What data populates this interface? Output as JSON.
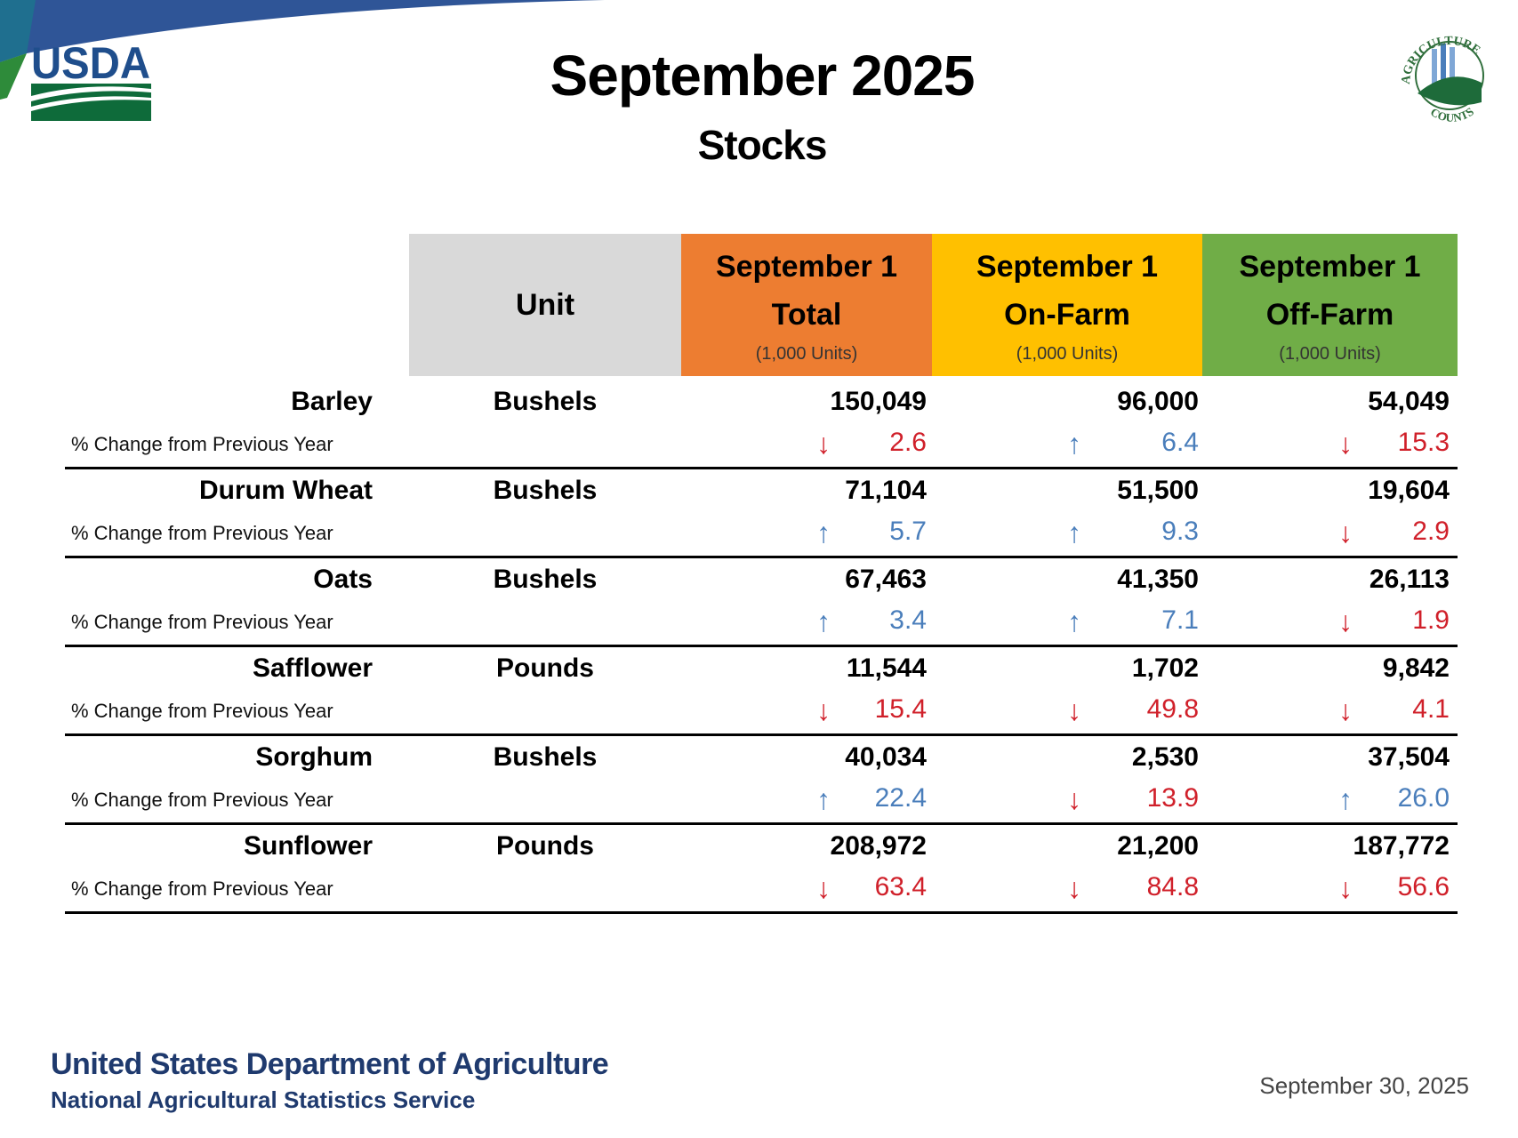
{
  "header": {
    "title": "September 2025",
    "subtitle": "Stocks"
  },
  "logos": {
    "left": "USDA",
    "right": "AGRICULTURE COUNTS"
  },
  "colors": {
    "total": "#ed7d31",
    "on_farm": "#ffc000",
    "off_farm": "#70ad47",
    "unit": "#d9d9d9",
    "up": "#4a7ebb",
    "down": "#d0202a",
    "footer": "#1f3a6e"
  },
  "columns": {
    "unit": "Unit",
    "total": {
      "line1": "September 1",
      "line2": "Total",
      "units": "(1,000 Units)"
    },
    "on_farm": {
      "line1": "September 1",
      "line2": "On-Farm",
      "units": "(1,000 Units)"
    },
    "off_farm": {
      "line1": "September 1",
      "line2": "Off-Farm",
      "units": "(1,000 Units)"
    }
  },
  "pct_label": "% Change from Previous Year",
  "rows": [
    {
      "name": "Barley",
      "unit": "Bushels",
      "total": "150,049",
      "on_farm": "96,000",
      "off_farm": "54,049",
      "pct": [
        {
          "dir": "down",
          "value": "2.6"
        },
        {
          "dir": "up",
          "value": "6.4"
        },
        {
          "dir": "down",
          "value": "15.3"
        }
      ]
    },
    {
      "name": "Durum Wheat",
      "unit": "Bushels",
      "total": "71,104",
      "on_farm": "51,500",
      "off_farm": "19,604",
      "pct": [
        {
          "dir": "up",
          "value": "5.7"
        },
        {
          "dir": "up",
          "value": "9.3"
        },
        {
          "dir": "down",
          "value": "2.9"
        }
      ]
    },
    {
      "name": "Oats",
      "unit": "Bushels",
      "total": "67,463",
      "on_farm": "41,350",
      "off_farm": "26,113",
      "pct": [
        {
          "dir": "up",
          "value": "3.4"
        },
        {
          "dir": "up",
          "value": "7.1"
        },
        {
          "dir": "down",
          "value": "1.9"
        }
      ]
    },
    {
      "name": "Safflower",
      "unit": "Pounds",
      "total": "11,544",
      "on_farm": "1,702",
      "off_farm": "9,842",
      "pct": [
        {
          "dir": "down",
          "value": "15.4"
        },
        {
          "dir": "down",
          "value": "49.8"
        },
        {
          "dir": "down",
          "value": "4.1"
        }
      ]
    },
    {
      "name": "Sorghum",
      "unit": "Bushels",
      "total": "40,034",
      "on_farm": "2,530",
      "off_farm": "37,504",
      "pct": [
        {
          "dir": "up",
          "value": "22.4"
        },
        {
          "dir": "down",
          "value": "13.9"
        },
        {
          "dir": "up",
          "value": "26.0"
        }
      ]
    },
    {
      "name": "Sunflower",
      "unit": "Pounds",
      "total": "208,972",
      "on_farm": "21,200",
      "off_farm": "187,772",
      "pct": [
        {
          "dir": "down",
          "value": "63.4"
        },
        {
          "dir": "down",
          "value": "84.8"
        },
        {
          "dir": "down",
          "value": "56.6"
        }
      ]
    }
  ],
  "footer": {
    "line1": "United States Department of Agriculture",
    "line2": "National Agricultural Statistics Service",
    "date": "September 30, 2025"
  }
}
